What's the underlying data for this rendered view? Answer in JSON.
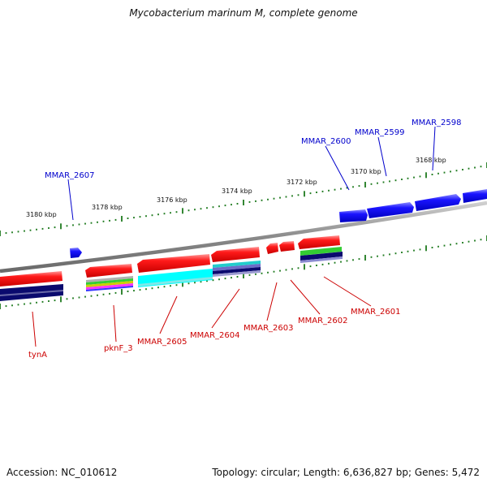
{
  "title": "Mycobacterium marinum M, complete genome",
  "footer": {
    "accession": "Accession: NC_010612",
    "summary": "Topology: circular; Length: 6,636,827 bp; Genes: 5,472"
  },
  "colors": {
    "forward_gene": "#0a00ff",
    "reverse_gene": "#ff0000",
    "forward_label": "#0000cc",
    "reverse_label": "#cc0000",
    "backbone": "#8a8a8a",
    "tick": "#1f7a1f",
    "cyan_track": "#00ffff",
    "navy_track": "#0a0a6e"
  },
  "scale_labels": [
    "3180 kbp",
    "3178 kbp",
    "3176 kbp",
    "3174 kbp",
    "3172 kbp",
    "3170 kbp",
    "3168 kbp"
  ],
  "forward_genes": [
    "MMAR_2607",
    "MMAR_2600",
    "MMAR_2599",
    "MMAR_2598"
  ],
  "reverse_genes": [
    "tynA",
    "pknF_3",
    "MMAR_2605",
    "MMAR_2604",
    "MMAR_2603",
    "MMAR_2602",
    "MMAR_2601"
  ]
}
